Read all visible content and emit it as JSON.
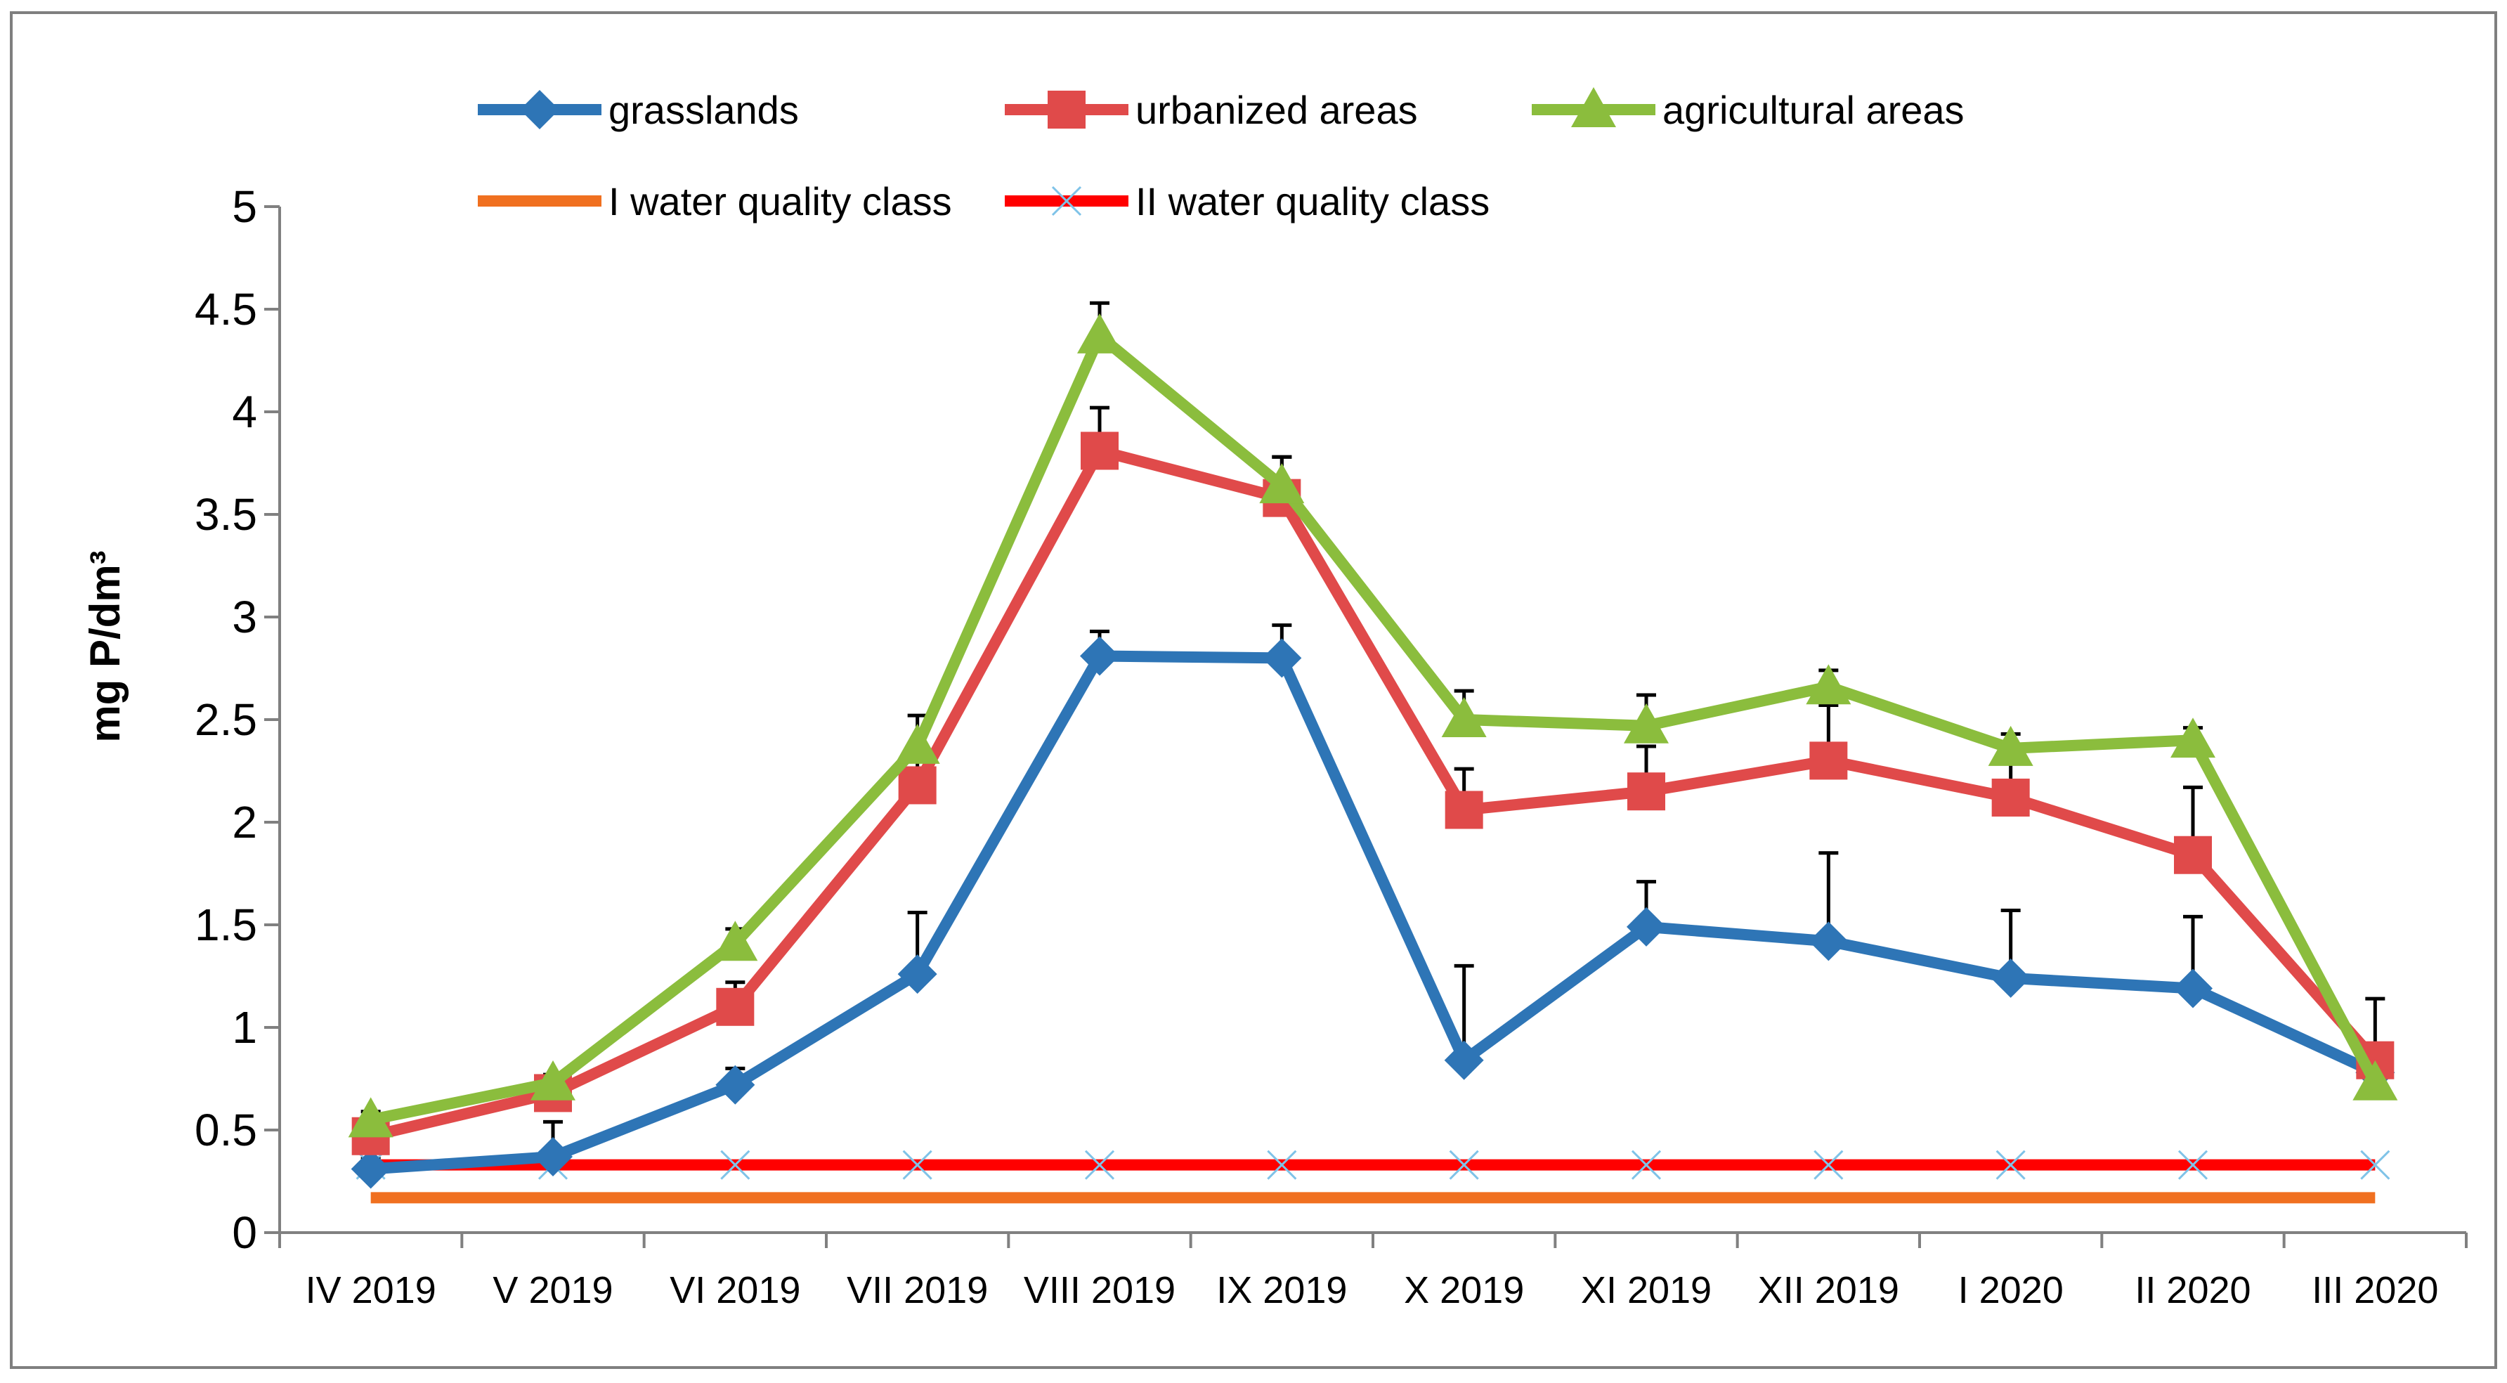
{
  "chart_data": {
    "type": "line",
    "title": "",
    "xlabel": "",
    "ylabel": "mg P/dm³",
    "ylim": [
      0,
      5
    ],
    "yticks": [
      "0",
      "0.5",
      "1",
      "1.5",
      "2",
      "2.5",
      "3",
      "3.5",
      "4",
      "4.5",
      "5"
    ],
    "categories": [
      "IV 2019",
      "V 2019",
      "VI 2019",
      "VII 2019",
      "VIII 2019",
      "IX 2019",
      "X 2019",
      "XI 2019",
      "XII 2019",
      "I 2020",
      "II 2020",
      "III 2020"
    ],
    "legend_position": "top",
    "series": [
      {
        "name": "grasslands",
        "color": "#2e75b6",
        "marker": "diamond",
        "values": [
          0.31,
          0.37,
          0.72,
          1.26,
          2.81,
          2.8,
          0.84,
          1.49,
          1.42,
          1.24,
          1.19,
          0.78
        ],
        "error": [
          0.05,
          0.17,
          0.08,
          0.3,
          0.12,
          0.16,
          0.46,
          0.22,
          0.43,
          0.33,
          0.35,
          0.06
        ]
      },
      {
        "name": "urbanized areas",
        "color": "#e04a4a",
        "marker": "square",
        "values": [
          0.47,
          0.68,
          1.1,
          2.18,
          3.81,
          3.58,
          2.06,
          2.15,
          2.3,
          2.12,
          1.84,
          0.84
        ],
        "error": [
          0.06,
          0.06,
          0.12,
          0.12,
          0.21,
          0.2,
          0.2,
          0.22,
          0.27,
          0.18,
          0.33,
          0.3
        ]
      },
      {
        "name": "agricultural areas",
        "color": "#8bbd3d",
        "marker": "triangle",
        "values": [
          0.55,
          0.73,
          1.41,
          2.37,
          4.37,
          3.64,
          2.5,
          2.47,
          2.66,
          2.36,
          2.4,
          0.73
        ],
        "error": [
          0.04,
          0.04,
          0.07,
          0.15,
          0.16,
          0.14,
          0.14,
          0.15,
          0.08,
          0.07,
          0.06,
          0.04
        ]
      },
      {
        "name": "I water quality class",
        "color": "#f07020",
        "marker": "none",
        "values": [
          0.17,
          0.17,
          0.17,
          0.17,
          0.17,
          0.17,
          0.17,
          0.17,
          0.17,
          0.17,
          0.17,
          0.17
        ]
      },
      {
        "name": "II water quality class",
        "color": "#ff0000",
        "marker": "cross",
        "values": [
          0.33,
          0.33,
          0.33,
          0.33,
          0.33,
          0.33,
          0.33,
          0.33,
          0.33,
          0.33,
          0.33,
          0.33
        ]
      }
    ]
  }
}
